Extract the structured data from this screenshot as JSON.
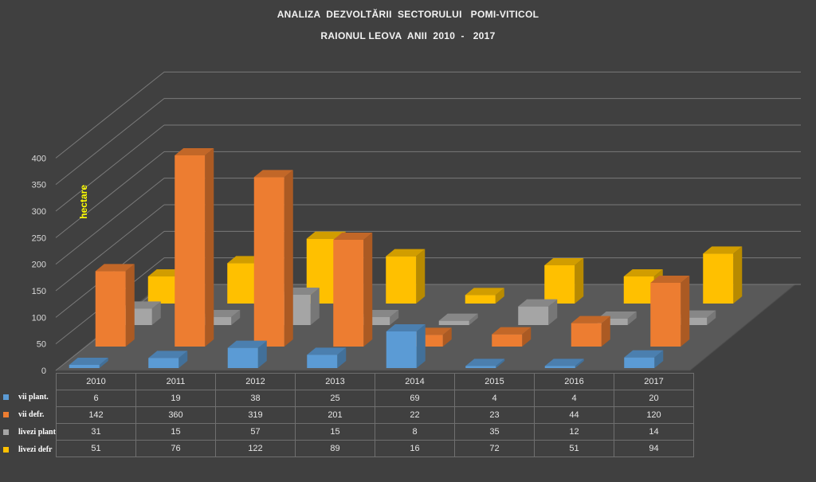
{
  "title_line1": "ANALIZA  DEZVOLTĂRII  SECTORULUI   POMI-VITICOL",
  "title_line2": "RAIONUL LEOVA  ANII  2010  -   2017",
  "chart_data": {
    "type": "bar",
    "title": "ANALIZA DEZVOLTĂRII SECTORULUI POMI-VITICOL — RAIONUL LEOVA ANII 2010 - 2017",
    "ylabel": "hectare",
    "ylim": [
      0,
      400
    ],
    "yticks": [
      0,
      50,
      100,
      150,
      200,
      250,
      300,
      350,
      400
    ],
    "categories": [
      "2010",
      "2011",
      "2012",
      "2013",
      "2014",
      "2015",
      "2016",
      "2017"
    ],
    "series": [
      {
        "name": "vii plant.",
        "color": "#5b9bd5",
        "values": [
          6,
          19,
          38,
          25,
          69,
          4,
          4,
          20
        ]
      },
      {
        "name": "vii defr.",
        "color": "#ed7d31",
        "values": [
          142,
          360,
          319,
          201,
          22,
          23,
          44,
          120
        ]
      },
      {
        "name": "livezi  plant",
        "color": "#a5a5a5",
        "values": [
          31,
          15,
          57,
          15,
          8,
          35,
          12,
          14
        ]
      },
      {
        "name": "livezi defr",
        "color": "#ffc000",
        "values": [
          51,
          76,
          122,
          89,
          16,
          72,
          51,
          94
        ]
      }
    ],
    "grid": true,
    "legend": "data-table-left",
    "layout_3d": true
  }
}
